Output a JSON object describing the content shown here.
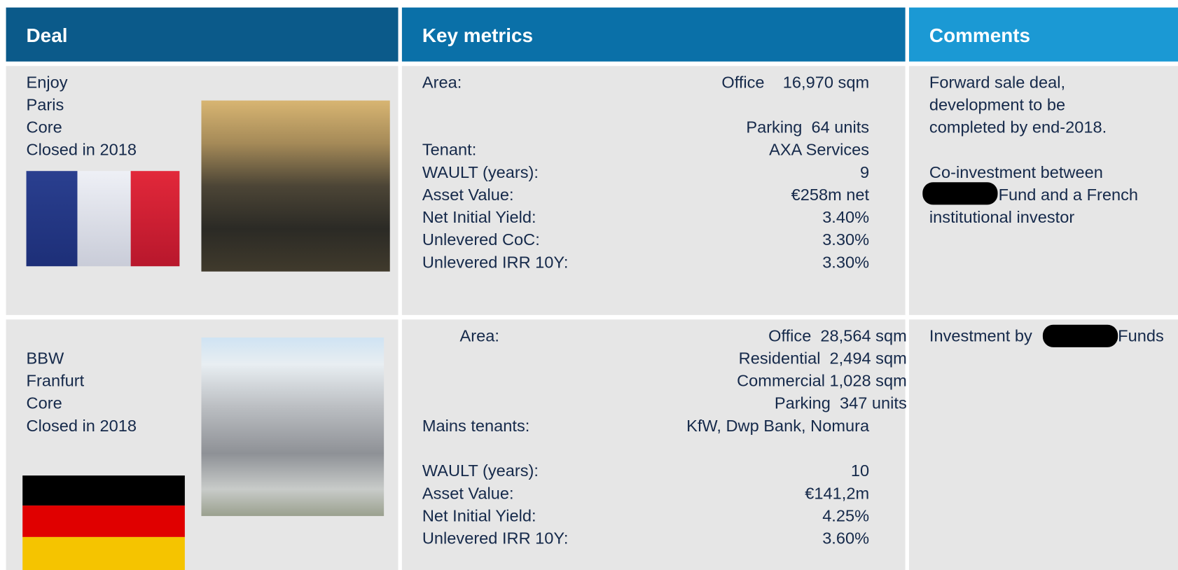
{
  "header": {
    "columns": [
      "Deal",
      "Key metrics",
      "Comments"
    ]
  },
  "rows": [
    {
      "deal": [
        "Enjoy",
        "Paris",
        "Core",
        "Closed in 2018"
      ],
      "metrics": [
        {
          "label": "Area:",
          "value": "Office    16,970 sqm"
        },
        {
          "value": "Parking  64 units"
        },
        {
          "label": "Tenant:",
          "value": "AXA Services"
        },
        {
          "label": "WAULT (years):",
          "value": "9"
        },
        {
          "label": "Asset Value:",
          "value": "€258m net"
        },
        {
          "label": "Net Initial Yield:",
          "value": "3.40%"
        },
        {
          "label": "Unlevered CoC:",
          "value": "3.30%"
        },
        {
          "label": "Unlevered IRR 10Y:",
          "value": "3.30%"
        }
      ],
      "comments": [
        "Forward sale deal,",
        "development to be",
        "completed by end-2018.",
        "Co-investment between",
        "Fund and a French",
        "institutional investor"
      ]
    },
    {
      "deal": [
        "BBW",
        "Franfurt",
        "Core",
        "Closed in 2018"
      ],
      "metrics": [
        {
          "label": "Area:",
          "value": "Office  28,564 sqm"
        },
        {
          "value": "Residential  2,494 sqm"
        },
        {
          "value": "Commercial 1,028 sqm"
        },
        {
          "value": "Parking  347 units"
        },
        {
          "label": "Mains tenants:",
          "value": "KfW, Dwp Bank, Nomura"
        },
        {
          "label": "WAULT (years):",
          "value": "10"
        },
        {
          "label": "Asset Value:",
          "value": "€141,2m"
        },
        {
          "label": "Net Initial Yield:",
          "value": "4.25%"
        },
        {
          "label": "Unlevered IRR 10Y:",
          "value": "3.60%"
        }
      ],
      "comments": [
        "Investment by",
        "Funds"
      ]
    }
  ]
}
